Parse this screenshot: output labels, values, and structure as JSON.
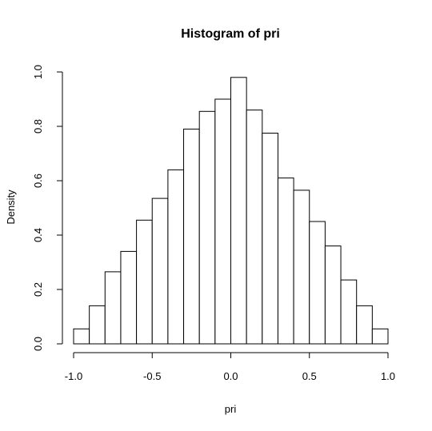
{
  "chart_data": {
    "type": "bar",
    "title": "Histogram of pri",
    "xlabel": "pri",
    "ylabel": "Density",
    "bin_edges": [
      -1.0,
      -0.9,
      -0.8,
      -0.7,
      -0.6,
      -0.5,
      -0.4,
      -0.3,
      -0.2,
      -0.1,
      0.0,
      0.1,
      0.2,
      0.3,
      0.4,
      0.5,
      0.6,
      0.7,
      0.8,
      0.9,
      1.0
    ],
    "values": [
      0.055,
      0.14,
      0.265,
      0.34,
      0.455,
      0.535,
      0.64,
      0.79,
      0.855,
      0.9,
      0.98,
      0.86,
      0.775,
      0.61,
      0.565,
      0.45,
      0.36,
      0.235,
      0.14,
      0.055
    ],
    "xlim": [
      -1.0,
      1.0
    ],
    "ylim": [
      0,
      1.0
    ],
    "x_ticks": [
      -1.0,
      -0.5,
      0.0,
      0.5,
      1.0
    ],
    "x_tick_labels": [
      "-1.0",
      "-0.5",
      "0.0",
      "0.5",
      "1.0"
    ],
    "y_ticks": [
      0.0,
      0.2,
      0.4,
      0.6,
      0.8,
      1.0
    ],
    "y_tick_labels": [
      "0.0",
      "0.2",
      "0.4",
      "0.6",
      "0.8",
      "1.0"
    ],
    "grid": false,
    "legend": "none"
  }
}
